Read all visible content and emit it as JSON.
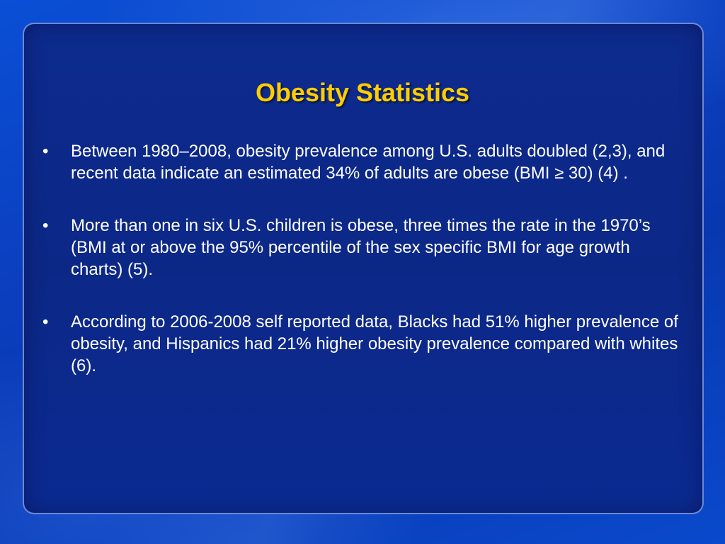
{
  "slide": {
    "title": "Obesity Statistics",
    "bullet_glyph": "•",
    "bullets": [
      {
        "text": "Between 1980–2008, obesity prevalence among U.S. adults doubled (2,3), and recent data indicate an estimated 34% of adults are obese (BMI ≥ 30) (4) ."
      },
      {
        "text": "More than one in six U.S. children is obese, three times the rate in the 1970’s (BMI at or above the 95% percentile of the sex specific BMI for age growth charts) (5)."
      },
      {
        "text": "According to 2006-2008 self reported data, Blacks had 51% higher prevalence of obesity, and Hispanics had 21% higher obesity prevalence compared with whites (6)."
      }
    ]
  },
  "colors": {
    "title": "#ffcc00",
    "text": "#ffffff",
    "panel": "#0c2887",
    "background": "#0b3fbf"
  }
}
